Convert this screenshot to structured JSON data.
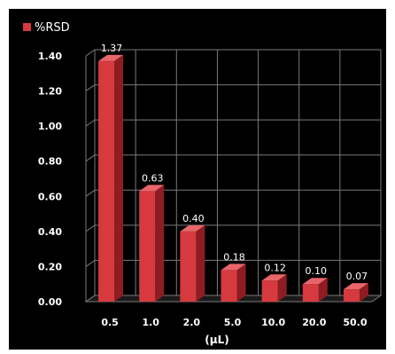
{
  "chart_data": {
    "type": "bar",
    "legend": {
      "label": "%RSD",
      "position": "top-left"
    },
    "categories": [
      "0.5",
      "1.0",
      "2.0",
      "5.0",
      "10.0",
      "20.0",
      "50.0"
    ],
    "series": [
      {
        "name": "%RSD",
        "values": [
          1.37,
          0.63,
          0.4,
          0.18,
          0.12,
          0.1,
          0.07
        ]
      }
    ],
    "data_labels": [
      "1.37",
      "0.63",
      "0.40",
      "0.18",
      "0.12",
      "0.10",
      "0.07"
    ],
    "y_ticks": [
      "0.00",
      "0.20",
      "0.40",
      "0.60",
      "0.80",
      "1.00",
      "1.20",
      "1.40"
    ],
    "xlabel": "(µL)",
    "ylabel": "",
    "ylim": [
      0,
      1.4
    ],
    "grid": true,
    "style": "3d-bar",
    "colors": {
      "background": "#000000",
      "bar_front": "#d63a3f",
      "bar_side": "#8f1c22",
      "bar_top": "#e8666a",
      "grid": "#7a7a7a",
      "text": "#ffffff"
    }
  }
}
